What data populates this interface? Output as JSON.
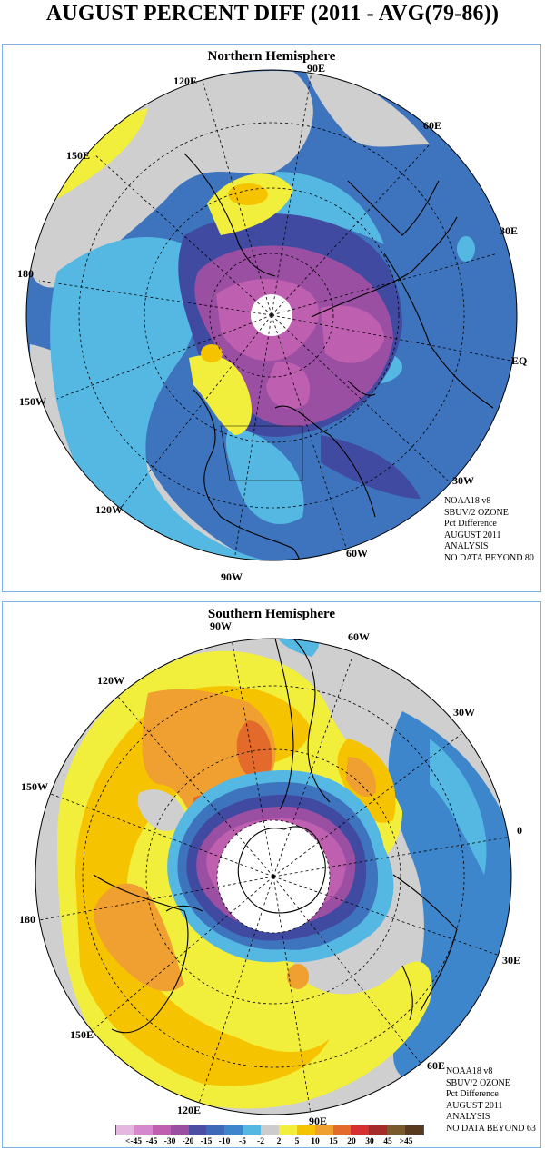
{
  "title": "AUGUST PERCENT DIFF (2011 - AVG(79-86))",
  "north": {
    "heading": "Northern Hemisphere",
    "longitude_labels": {
      "lon_90e": "90E",
      "lon_60e": "60E",
      "lon_30e": "30E",
      "lon_eq": "EQ",
      "lon_120e": "120E",
      "lon_150e": "150E",
      "lon_180": "180",
      "lon_150w": "150W",
      "lon_120w": "120W",
      "lon_90w": "90W",
      "lon_60w": "60W",
      "lon_30w": "30W"
    },
    "info": [
      "NOAA18 v8",
      "SBUV/2 OZONE",
      "Pct Difference",
      "AUGUST 2011",
      "ANALYSIS",
      "NO DATA BEYOND  80"
    ]
  },
  "south": {
    "heading": "Southern Hemisphere",
    "longitude_labels": {
      "lon_90w": "90W",
      "lon_60w": "60W",
      "lon_30w": "30W",
      "lon_0": "0",
      "lon_120w": "120W",
      "lon_150w": "150W",
      "lon_180": "180",
      "lon_30e": "30E",
      "lon_150e": "150E",
      "lon_60e": "60E",
      "lon_120e": "120E",
      "lon_90e": "90E"
    },
    "info": [
      "NOAA18 v8",
      "SBUV/2 OZONE",
      "Pct Difference",
      "AUGUST 2011",
      "ANALYSIS",
      "NO DATA BEYOND  63"
    ]
  },
  "legend": {
    "labels": [
      "<-45",
      "-45",
      "-30",
      "-20",
      "-15",
      "-10",
      "-5",
      "-2",
      "2",
      "5",
      "10",
      "15",
      "20",
      "30",
      "45",
      ">45"
    ],
    "colors": [
      "#e4b6e0",
      "#d688cf",
      "#bf5fb0",
      "#9a4fa3",
      "#4a4fa3",
      "#3d69b8",
      "#3e86cc",
      "#55b8e3",
      "#cccccc",
      "#f2ef3c",
      "#f5c300",
      "#f0a030",
      "#e36a2a",
      "#d63030",
      "#a52a2a",
      "#7a5a2a",
      "#5a3a1e"
    ]
  },
  "palette": {
    "gray": "#cfcfcf",
    "yellow": "#f2ef3c",
    "gold": "#f5c300",
    "orange": "#f0a030",
    "redorange": "#e36a2a",
    "red": "#d63030",
    "lightblue": "#55b8e3",
    "midblue": "#3e86cc",
    "blue": "#3d69b8",
    "navy": "#3f4aa0",
    "violet": "#9a4fa3",
    "magenta": "#bf5fb0",
    "pink": "#d688cf",
    "panel_border": "#7fb2e0"
  }
}
